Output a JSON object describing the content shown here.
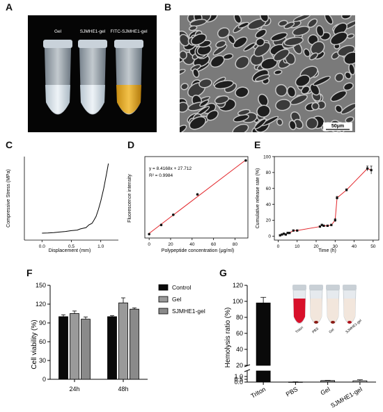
{
  "panels": {
    "A": {
      "letter": "A",
      "tube_labels": [
        "Gel",
        "SJMHE1-gel",
        "FITC-SJMHE1-gel"
      ]
    },
    "B": {
      "letter": "B",
      "scale_bar": "50μm"
    },
    "C": {
      "letter": "C"
    },
    "D": {
      "letter": "D"
    },
    "E": {
      "letter": "E"
    },
    "F": {
      "letter": "F"
    },
    "G": {
      "letter": "G",
      "inset_labels": [
        "Triton",
        "PBS",
        "Gel",
        "SJMHE1-gel"
      ]
    }
  },
  "chart_data": [
    {
      "id": "C",
      "type": "line",
      "xlabel": "Displacement (mm)",
      "ylabel": "Compressive Stress (MPa)",
      "xlim": [
        -0.3,
        1.3
      ],
      "ylim": [
        -0.05,
        0.55
      ],
      "xticks": [
        "0.0",
        "0.5",
        "1.0"
      ],
      "xtick_values": [
        0.0,
        0.5,
        1.0
      ],
      "x": [
        0.0,
        0.1,
        0.2,
        0.3,
        0.4,
        0.5,
        0.6,
        0.65,
        0.7,
        0.75,
        0.8,
        0.85,
        0.88,
        0.92,
        0.96,
        1.0,
        1.05,
        1.1,
        1.13
      ],
      "y": [
        0.0,
        0.001,
        0.004,
        0.008,
        0.012,
        0.018,
        0.022,
        0.03,
        0.035,
        0.04,
        0.06,
        0.07,
        0.09,
        0.12,
        0.17,
        0.23,
        0.32,
        0.43,
        0.5
      ]
    },
    {
      "id": "D",
      "type": "scatter",
      "xlabel": "Polypeptide concentration (μg/ml)",
      "ylabel": "Fluorescence intensity",
      "annotations": [
        "y = 8.4168x + 27.712",
        "R² = 0.9984"
      ],
      "xlim": [
        -4,
        92
      ],
      "ylim": [
        -20,
        820
      ],
      "xticks": [
        "0",
        "20",
        "40",
        "60",
        "80"
      ],
      "xtick_values": [
        0,
        20,
        40,
        60,
        80
      ],
      "x": [
        0,
        11.25,
        22.5,
        45,
        90
      ],
      "y": [
        20,
        115,
        220,
        430,
        780
      ],
      "fit": {
        "slope": 8.4168,
        "intercept": 27.712
      },
      "point_color": "#111111",
      "line_color": "#e3262b"
    },
    {
      "id": "E",
      "type": "line",
      "xlabel": "Time (h)",
      "ylabel": "Cumulative release rate (%)",
      "xlim": [
        -2,
        53
      ],
      "ylim": [
        -5,
        100
      ],
      "xticks": [
        "0",
        "10",
        "20",
        "30",
        "40",
        "50"
      ],
      "xtick_values": [
        0,
        10,
        20,
        30,
        40,
        50
      ],
      "yticks": [
        "0",
        "20",
        "40",
        "60",
        "80",
        "100"
      ],
      "ytick_values": [
        0,
        20,
        40,
        60,
        80,
        100
      ],
      "x": [
        1,
        2,
        3,
        4,
        5,
        6,
        8,
        10,
        22,
        23,
        24,
        26,
        28,
        30,
        31,
        36,
        47,
        49
      ],
      "y": [
        1,
        2,
        3,
        2,
        4,
        4,
        7,
        7,
        12,
        14,
        13,
        13,
        14,
        20,
        48,
        58,
        85,
        83
      ],
      "err": [
        0.5,
        0.5,
        0.5,
        0.5,
        0.5,
        0.5,
        0.7,
        0.7,
        1,
        1,
        1,
        1,
        1,
        2,
        2,
        1.5,
        3,
        5
      ],
      "line_color": "#e3262b"
    },
    {
      "id": "F",
      "type": "bar",
      "ylabel": "Cell viability (%)",
      "categories": [
        "24h",
        "48h"
      ],
      "ylim": [
        0,
        150
      ],
      "yticks": [
        "0",
        "30",
        "60",
        "90",
        "120",
        "150"
      ],
      "ytick_values": [
        0,
        30,
        60,
        90,
        120,
        150
      ],
      "series": [
        {
          "name": "Control",
          "values": [
            100,
            100
          ],
          "err": [
            3,
            1.5
          ],
          "color": "#0a0a0a"
        },
        {
          "name": "Gel",
          "values": [
            105,
            122
          ],
          "err": [
            4,
            8
          ],
          "color": "#9a9a9a"
        },
        {
          "name": "SJMHE1-gel",
          "values": [
            96,
            112
          ],
          "err": [
            3.5,
            2
          ],
          "color": "#8a8a8a"
        }
      ],
      "legend": "right"
    },
    {
      "id": "G",
      "type": "bar",
      "ylabel": "Hemolysis ratio (%)",
      "categories": [
        "Triton",
        "PBS",
        "Gel",
        "SJMHE1-gel"
      ],
      "broken_axis": {
        "lower": [
          0,
          2.0
        ],
        "upper": [
          20,
          120
        ]
      },
      "yticks_upper": [
        "20",
        "40",
        "60",
        "80",
        "100",
        "120"
      ],
      "ytick_values_upper": [
        20,
        40,
        60,
        80,
        100,
        120
      ],
      "yticks_lower": [
        "0.0",
        "0.5",
        "1.0"
      ],
      "ytick_values_lower": [
        0.0,
        0.5,
        1.0
      ],
      "values": [
        98,
        0.02,
        0.27,
        0.23
      ],
      "err": [
        7,
        0.03,
        0.04,
        0.18
      ],
      "colors": [
        "#0a0a0a",
        "#0a0a0a",
        "#8a8a8a",
        "#cfcfcf"
      ]
    }
  ]
}
